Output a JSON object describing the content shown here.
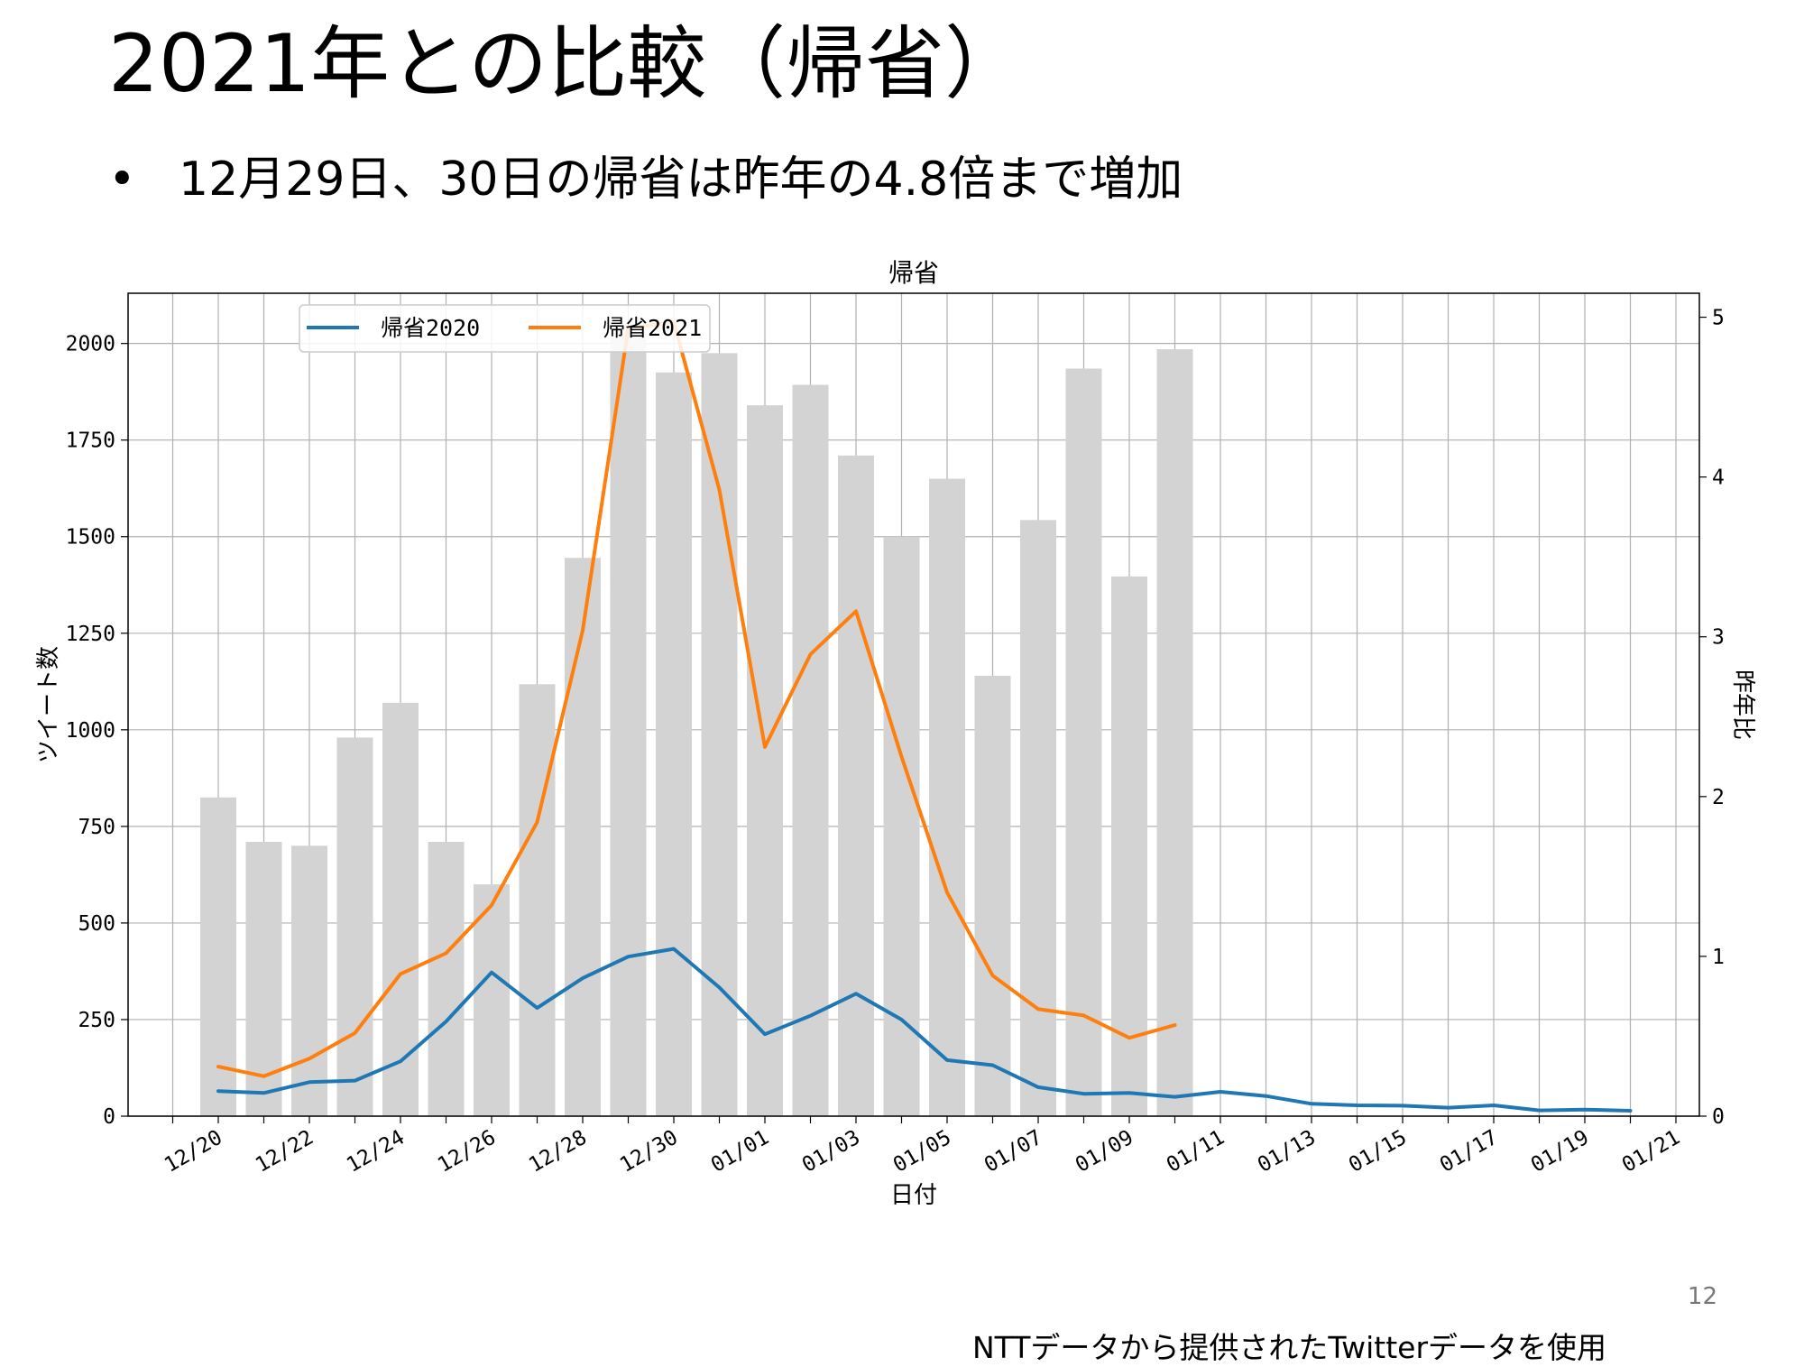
{
  "slide": {
    "title": "2021年との比較（帰省）",
    "bullet_symbol": "•",
    "bullet_text": "12月29日、30日の帰省は昨年の4.8倍まで増加",
    "page_number": "12",
    "footnote": "NTTデータから提供されたTwitterデータを使用"
  },
  "chart_data": {
    "type": "bar+line",
    "title": "帰省",
    "xlabel": "日付",
    "ylabel": "ツイート数",
    "ylabel_right": "昨年比",
    "x_tick_labels": [
      "12/20",
      "12/22",
      "12/24",
      "12/26",
      "12/28",
      "12/30",
      "01/01",
      "01/03",
      "01/05",
      "01/07",
      "01/09",
      "01/11",
      "01/13",
      "01/15",
      "01/17",
      "01/19",
      "01/21"
    ],
    "y_ticks": [
      0,
      250,
      500,
      750,
      1000,
      1250,
      1500,
      1750,
      2000
    ],
    "y2_ticks": [
      0,
      1,
      2,
      3,
      4,
      5
    ],
    "ylim": [
      0,
      2130
    ],
    "y2lim": [
      0,
      5.15
    ],
    "grid": true,
    "legend_position": "upper-left",
    "bars": {
      "name": "ツイート数",
      "color": "#d3d3d3",
      "dates": [
        "12/20",
        "12/21",
        "12/22",
        "12/23",
        "12/24",
        "12/25",
        "12/26",
        "12/27",
        "12/28",
        "12/29",
        "12/30",
        "12/31",
        "01/01",
        "01/02",
        "01/03",
        "01/04",
        "01/05",
        "01/06",
        "01/07",
        "01/08",
        "01/09",
        "01/10"
      ],
      "values": [
        825,
        710,
        700,
        980,
        1070,
        710,
        600,
        1118,
        1445,
        2030,
        1925,
        1975,
        1840,
        1893,
        1710,
        1500,
        1650,
        1140,
        1543,
        1935,
        1397,
        1985
      ]
    },
    "series": [
      {
        "name": "帰省2020",
        "color": "#1f77b4",
        "axis": "left",
        "dates": [
          "12/20",
          "12/21",
          "12/22",
          "12/23",
          "12/24",
          "12/25",
          "12/26",
          "12/27",
          "12/28",
          "12/29",
          "12/30",
          "12/31",
          "01/01",
          "01/02",
          "01/03",
          "01/04",
          "01/05",
          "01/06",
          "01/07",
          "01/08",
          "01/09",
          "01/10",
          "01/11",
          "01/12",
          "01/13",
          "01/14",
          "01/15",
          "01/16",
          "01/17",
          "01/18",
          "01/19",
          "01/20"
        ],
        "values": [
          65,
          60,
          88,
          92,
          142,
          245,
          372,
          280,
          357,
          413,
          433,
          333,
          212,
          260,
          317,
          250,
          145,
          132,
          75,
          58,
          60,
          50,
          63,
          52,
          32,
          28,
          27,
          22,
          28,
          15,
          17,
          14
        ]
      },
      {
        "name": "帰省2021",
        "color": "#ff7f0e",
        "axis": "right",
        "dates": [
          "12/20",
          "12/21",
          "12/22",
          "12/23",
          "12/24",
          "12/25",
          "12/26",
          "12/27",
          "12/28",
          "12/29",
          "12/30",
          "12/31",
          "01/01",
          "01/02",
          "01/03",
          "01/04",
          "01/05",
          "01/06",
          "01/07",
          "01/08",
          "01/09",
          "01/10"
        ],
        "values": [
          0.31,
          0.25,
          0.36,
          0.52,
          0.89,
          1.02,
          1.32,
          1.84,
          3.04,
          4.93,
          4.97,
          3.92,
          2.31,
          2.89,
          3.16,
          2.25,
          1.4,
          0.88,
          0.67,
          0.63,
          0.49,
          0.57
        ]
      }
    ]
  }
}
